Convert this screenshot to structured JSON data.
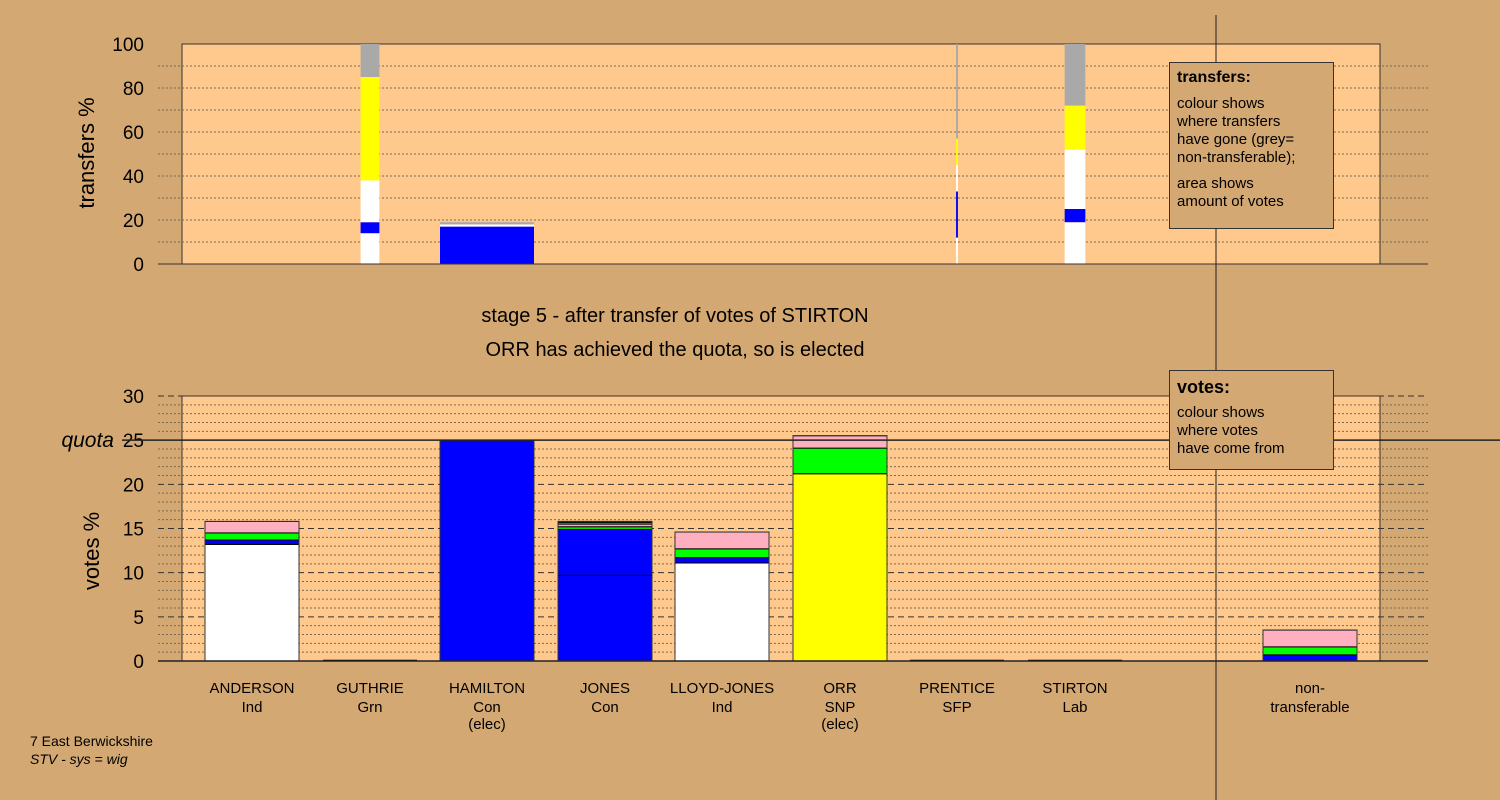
{
  "titles": {
    "line1": "stage 5 - after transfer of votes of STIRTON",
    "line2": "ORR has achieved the quota, so is elected"
  },
  "footer": {
    "line1": "7 East Berwickshire",
    "line2": "STV - sys = wig"
  },
  "legends": {
    "transfers": {
      "title": "transfers:",
      "lines": [
        "colour shows",
        "where transfers",
        "have gone (grey=",
        "non-transferable);",
        "area shows",
        "amount of votes"
      ]
    },
    "votes": {
      "title": "votes:",
      "lines": [
        "colour shows",
        "where votes",
        "have come from"
      ]
    }
  },
  "colors": {
    "background": "#d4a872",
    "plot_background": "#ffc88c",
    "Ind": "#ffffff",
    "Con": "#0000ff",
    "SNP": "#ffff00",
    "Grn": "#00ff00",
    "Lab": "#ffb0c0",
    "non_transferable": "#a9a9a9"
  },
  "chart_data": [
    {
      "type": "bar",
      "name": "transfers",
      "ylabel": "transfers %",
      "ylim": [
        0,
        100
      ],
      "yticks": [
        0,
        20,
        40,
        60,
        80,
        100
      ],
      "columns": [
        {
          "candidate": "GUTHRIE",
          "width": 0.2,
          "segments": [
            {
              "party": "Ind",
              "from": 0,
              "to": 14
            },
            {
              "party": "Con",
              "from": 14,
              "to": 19
            },
            {
              "party": "Ind",
              "from": 19,
              "to": 38
            },
            {
              "party": "SNP",
              "from": 38,
              "to": 85
            },
            {
              "party": "non_transferable",
              "from": 85,
              "to": 100
            }
          ]
        },
        {
          "candidate": "HAMILTON",
          "width": 1.0,
          "segments": [
            {
              "party": "Con",
              "from": 0,
              "to": 17
            },
            {
              "party": "Ind",
              "from": 17,
              "to": 18
            },
            {
              "party": "non_transferable",
              "from": 18,
              "to": 19
            }
          ]
        },
        {
          "candidate": "PRENTICE",
          "width": 0.02,
          "segments": [
            {
              "party": "Ind",
              "from": 0,
              "to": 12
            },
            {
              "party": "Con",
              "from": 12,
              "to": 33
            },
            {
              "party": "Ind",
              "from": 33,
              "to": 45
            },
            {
              "party": "SNP",
              "from": 45,
              "to": 57
            },
            {
              "party": "non_transferable",
              "from": 57,
              "to": 100
            }
          ]
        },
        {
          "candidate": "STIRTON",
          "width": 0.22,
          "segments": [
            {
              "party": "Ind",
              "from": 0,
              "to": 19
            },
            {
              "party": "Con",
              "from": 19,
              "to": 25
            },
            {
              "party": "Ind",
              "from": 25,
              "to": 52
            },
            {
              "party": "SNP",
              "from": 52,
              "to": 72
            },
            {
              "party": "non_transferable",
              "from": 72,
              "to": 100
            }
          ]
        }
      ]
    },
    {
      "type": "bar",
      "name": "votes",
      "ylabel": "votes %",
      "ylim": [
        0,
        30
      ],
      "yticks": [
        0,
        5,
        10,
        15,
        20,
        25,
        30
      ],
      "quota": 25,
      "quota_label": "quota",
      "categories": [
        {
          "name": "ANDERSON",
          "party": "Ind",
          "note": ""
        },
        {
          "name": "GUTHRIE",
          "party": "Grn",
          "note": ""
        },
        {
          "name": "HAMILTON",
          "party": "Con",
          "note": "(elec)"
        },
        {
          "name": "JONES",
          "party": "Con",
          "note": ""
        },
        {
          "name": "LLOYD-JONES",
          "party": "Ind",
          "note": ""
        },
        {
          "name": "ORR",
          "party": "SNP",
          "note": "(elec)"
        },
        {
          "name": "PRENTICE",
          "party": "SFP",
          "note": ""
        },
        {
          "name": "STIRTON",
          "party": "Lab",
          "note": ""
        },
        {
          "name": "",
          "party": "",
          "note": ""
        },
        {
          "name": "non-",
          "party": "transferable",
          "note": ""
        }
      ],
      "stacks": [
        [
          {
            "party": "Ind",
            "from": 0,
            "to": 13.2
          },
          {
            "party": "Con",
            "from": 13.2,
            "to": 13.7
          },
          {
            "party": "Grn",
            "from": 13.7,
            "to": 14.5
          },
          {
            "party": "Lab",
            "from": 14.5,
            "to": 15.8
          }
        ],
        [],
        [
          {
            "party": "Con",
            "from": 0,
            "to": 25
          }
        ],
        [
          {
            "party": "Con",
            "from": 0,
            "to": 9.7
          },
          {
            "party": "Con",
            "from": 9.7,
            "to": 14.9
          },
          {
            "party": "Grn",
            "from": 14.9,
            "to": 15.2
          },
          {
            "party": "Lab",
            "from": 15.2,
            "to": 15.5
          },
          {
            "party": "Grn",
            "from": 15.5,
            "to": 15.7
          },
          {
            "party": "Lab",
            "from": 15.7,
            "to": 15.8
          }
        ],
        [
          {
            "party": "Ind",
            "from": 0,
            "to": 11.1
          },
          {
            "party": "Con",
            "from": 11.1,
            "to": 11.7
          },
          {
            "party": "Grn",
            "from": 11.7,
            "to": 12.7
          },
          {
            "party": "Lab",
            "from": 12.7,
            "to": 14.6
          }
        ],
        [
          {
            "party": "SNP",
            "from": 0,
            "to": 21.2
          },
          {
            "party": "Grn",
            "from": 21.2,
            "to": 24.1
          },
          {
            "party": "Lab",
            "from": 24.1,
            "to": 25.5
          }
        ],
        [],
        [],
        [],
        [
          {
            "party": "Con",
            "from": 0,
            "to": 0.7
          },
          {
            "party": "Grn",
            "from": 0.7,
            "to": 1.6
          },
          {
            "party": "Lab",
            "from": 1.6,
            "to": 3.5
          }
        ]
      ]
    }
  ]
}
